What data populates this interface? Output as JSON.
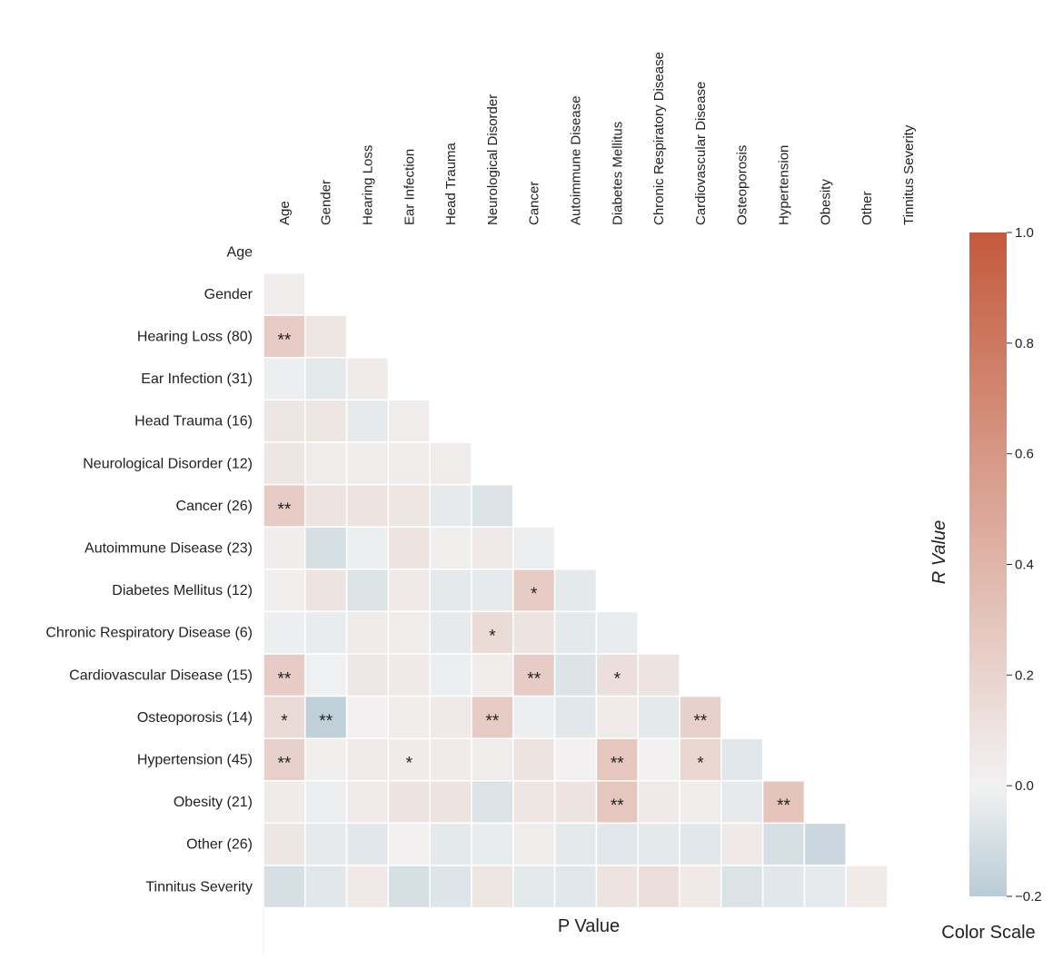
{
  "chart_data": {
    "type": "heatmap",
    "subtype": "lower-triangle correlation matrix",
    "col_labels": [
      "Age",
      "Gender",
      "Hearing Loss",
      "Ear Infection",
      "Head Trauma",
      "Neurological Disorder",
      "Cancer",
      "Autoimmune Disease",
      "Diabetes Mellitus",
      "Chronic Respiratory Disease",
      "Cardiovascular Disease",
      "Osteoporosis",
      "Hypertension",
      "Obesity",
      "Other",
      "Tinnitus Severity"
    ],
    "row_labels": [
      "Age",
      "Gender",
      "Hearing Loss (80)",
      "Ear Infection (31)",
      "Head Trauma (16)",
      "Neurological Disorder (12)",
      "Cancer (26)",
      "Autoimmune Disease (23)",
      "Diabetes Mellitus (12)",
      "Chronic Respiratory Disease (6)",
      "Cardiovascular Disease (15)",
      "Osteoporosis (14)",
      "Hypertension (45)",
      "Obesity (21)",
      "Other (26)",
      "Tinnitus Severity"
    ],
    "values": [
      [],
      [
        0.04
      ],
      [
        0.25,
        0.08
      ],
      [
        -0.02,
        -0.05,
        0.05
      ],
      [
        0.08,
        0.08,
        -0.04,
        0.04
      ],
      [
        0.08,
        0.04,
        0.04,
        0.04,
        0.04
      ],
      [
        0.25,
        0.1,
        0.1,
        0.08,
        -0.04,
        -0.08
      ],
      [
        0.03,
        -0.1,
        -0.02,
        0.1,
        0.02,
        0.06,
        -0.02
      ],
      [
        0.02,
        0.1,
        -0.08,
        0.06,
        -0.05,
        -0.04,
        0.25,
        -0.05
      ],
      [
        -0.02,
        -0.03,
        0.05,
        0.04,
        -0.04,
        0.15,
        0.1,
        -0.05,
        -0.03
      ],
      [
        0.25,
        -0.01,
        0.07,
        0.06,
        -0.02,
        0.03,
        0.25,
        -0.08,
        0.13,
        0.1
      ],
      [
        0.15,
        -0.18,
        0.01,
        0.04,
        0.06,
        0.25,
        -0.02,
        -0.06,
        0.05,
        -0.05,
        0.22
      ],
      [
        0.22,
        0.02,
        0.05,
        0.05,
        0.05,
        0.04,
        0.1,
        0.01,
        0.28,
        0.01,
        0.18,
        -0.06
      ],
      [
        0.05,
        -0.02,
        0.05,
        0.1,
        0.1,
        -0.08,
        0.08,
        0.1,
        0.28,
        0.06,
        0.04,
        -0.04,
        0.3
      ],
      [
        0.08,
        -0.04,
        -0.06,
        0.01,
        -0.05,
        -0.03,
        0.04,
        -0.05,
        -0.06,
        -0.05,
        -0.06,
        0.06,
        -0.1,
        -0.14
      ],
      [
        -0.1,
        -0.06,
        0.06,
        -0.1,
        -0.07,
        0.08,
        -0.05,
        -0.06,
        0.1,
        0.13,
        0.06,
        -0.08,
        -0.06,
        -0.04,
        0.05
      ]
    ],
    "significance": [
      [],
      [
        ""
      ],
      [
        "**",
        ""
      ],
      [
        "",
        "",
        ""
      ],
      [
        "",
        "",
        "",
        ""
      ],
      [
        "",
        "",
        "",
        "",
        ""
      ],
      [
        "**",
        "",
        "",
        "",
        "",
        ""
      ],
      [
        "",
        "",
        "",
        "",
        "",
        "",
        ""
      ],
      [
        "",
        "",
        "",
        "",
        "",
        "",
        "*",
        ""
      ],
      [
        "",
        "",
        "",
        "",
        "",
        "*",
        "",
        "",
        ""
      ],
      [
        "**",
        "",
        "",
        "",
        "",
        "",
        "**",
        "",
        "*",
        ""
      ],
      [
        "*",
        "**",
        "",
        "",
        "",
        "**",
        "",
        "",
        "",
        "",
        "**"
      ],
      [
        "**",
        "",
        "",
        "*",
        "",
        "",
        "",
        "",
        "**",
        "",
        "*",
        ""
      ],
      [
        "",
        "",
        "",
        "",
        "",
        "",
        "",
        "",
        "**",
        "",
        "",
        "",
        "**"
      ],
      [
        "",
        "",
        "",
        "",
        "",
        "",
        "",
        "",
        "",
        "",
        "",
        "",
        "",
        ""
      ],
      [
        "",
        "",
        "",
        "",
        "",
        "",
        "",
        "",
        "",
        "",
        "",
        "",
        "",
        "",
        ""
      ]
    ],
    "colorbar": {
      "title": "R Value",
      "range": [
        -0.2,
        1.0
      ],
      "ticks": [
        -0.2,
        0.0,
        0.2,
        0.4,
        0.6,
        0.8,
        1.0
      ],
      "tick_labels": [
        "−0.2",
        "0.0",
        "0.2",
        "0.4",
        "0.6",
        "0.8",
        "1.0"
      ],
      "color_low": "#b9ccd6",
      "color_mid": "#f2f2f2",
      "color_high": "#c45a3c"
    },
    "xlabel": "P Value",
    "colorbar_caption": "Color Scale"
  }
}
